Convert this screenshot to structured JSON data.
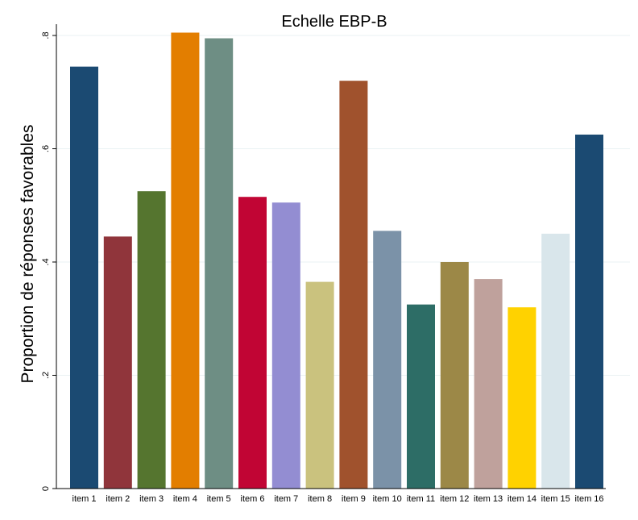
{
  "chart_data": {
    "type": "bar",
    "title": "Echelle EBP-B",
    "ylabel": "Proportion de réponses favorables",
    "xlabel": "",
    "ylim": [
      0,
      0.8
    ],
    "yticks": [
      {
        "value": 0,
        "label": "0"
      },
      {
        "value": 0.2,
        "label": ".2"
      },
      {
        "value": 0.4,
        "label": ".4"
      },
      {
        "value": 0.6,
        "label": ".6"
      },
      {
        "value": 0.8,
        "label": ".8"
      }
    ],
    "grid": true,
    "categories": [
      "item 1",
      "item 2",
      "item 3",
      "item 4",
      "item 5",
      "item 6",
      "item 7",
      "item 8",
      "item 9",
      "item 10",
      "item 11",
      "item 12",
      "item 13",
      "item 14",
      "item 15",
      "item 16"
    ],
    "values": [
      0.745,
      0.445,
      0.525,
      0.805,
      0.795,
      0.515,
      0.505,
      0.365,
      0.72,
      0.455,
      0.325,
      0.4,
      0.37,
      0.32,
      0.45,
      0.625
    ],
    "colors": [
      "#1b4a72",
      "#90353b",
      "#55752f",
      "#e37e00",
      "#6e8e84",
      "#c10534",
      "#938dd2",
      "#cac27e",
      "#a0522d",
      "#7b92a8",
      "#2d6d66",
      "#9c8847",
      "#bfa19c",
      "#ffd200",
      "#d9e6eb",
      "#1b4a72"
    ]
  }
}
